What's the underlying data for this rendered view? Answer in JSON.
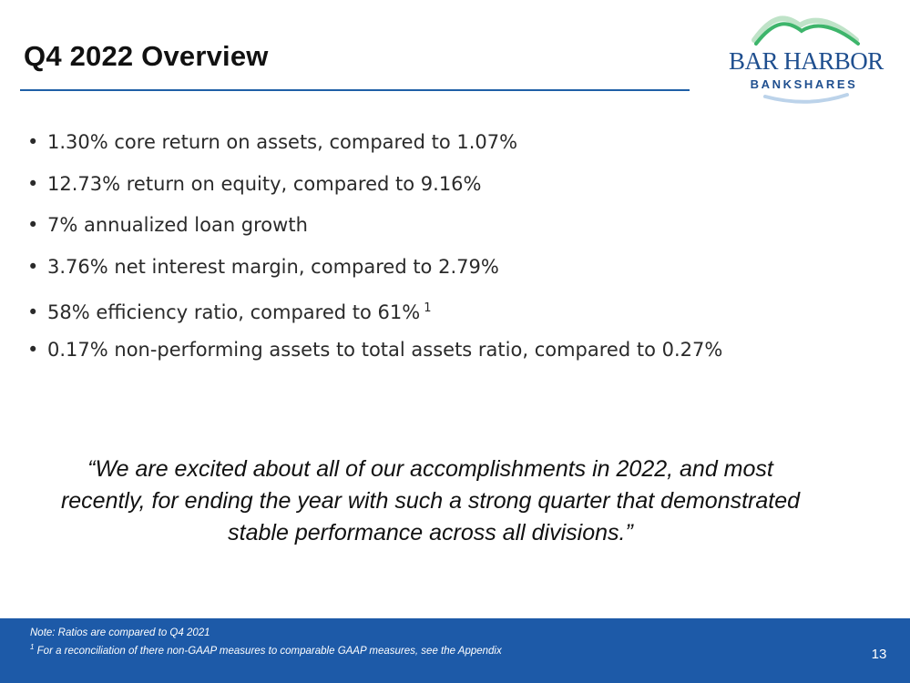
{
  "slide": {
    "title": "Q4 2022 Overview",
    "page_number": "13"
  },
  "logo": {
    "line1": "BAR HARBOR",
    "line2": "BANKSHARES",
    "colors": {
      "green": "#3db56b",
      "light_green": "#bfe3c8",
      "blue": "#1f4f8f"
    }
  },
  "bullets": [
    {
      "text": "1.30% core return on assets, compared to 1.07%",
      "sup": ""
    },
    {
      "text": "12.73% return on equity, compared to 9.16%",
      "sup": ""
    },
    {
      "text": "7% annualized loan growth",
      "sup": ""
    },
    {
      "text": "3.76% net interest margin, compared to 2.79%",
      "sup": ""
    },
    {
      "text": "58% efficiency ratio, compared to 61%",
      "sup": "1"
    },
    {
      "text": "0.17% non-performing assets to total assets ratio, compared to 0.27%",
      "sup": ""
    }
  ],
  "bullet_glyph": "•",
  "quote": {
    "line1": "“We are excited about all of our accomplishments in 2022, and most",
    "line2": "recently, for ending the year with such a strong quarter that demonstrated",
    "line3": "stable performance across all divisions.”"
  },
  "footer": {
    "note1": "Note:  Ratios are compared to Q4 2021",
    "note2_sup": "1",
    "note2": "  For a reconciliation of there non-GAAP measures to comparable GAAP measures, see the Appendix",
    "background": "#1d5aa8"
  }
}
